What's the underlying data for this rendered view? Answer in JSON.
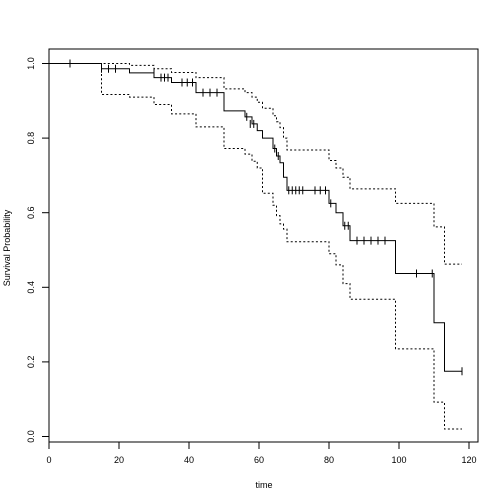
{
  "chart_data": {
    "type": "line",
    "title": "",
    "xlabel": "time",
    "ylabel": "Survival Probability",
    "xlim": [
      0,
      120
    ],
    "ylim": [
      0,
      1
    ],
    "grid": false,
    "x_ticks": [
      "0",
      "20",
      "40",
      "60",
      "80",
      "100",
      "120"
    ],
    "y_ticks": [
      "0.0",
      "0.2",
      "0.4",
      "0.6",
      "0.8",
      "1.0"
    ],
    "series": [
      {
        "line_style": "solid",
        "x": [
          0,
          15,
          23,
          30,
          35,
          42,
          50,
          56,
          58,
          59.5,
          61,
          64,
          65,
          66,
          67,
          68,
          80,
          82,
          84,
          86,
          99,
          110,
          113,
          118
        ],
        "y": [
          1.0,
          0.986,
          0.975,
          0.962,
          0.949,
          0.922,
          0.873,
          0.857,
          0.838,
          0.82,
          0.8,
          0.772,
          0.752,
          0.734,
          0.695,
          0.66,
          0.625,
          0.6,
          0.565,
          0.525,
          0.437,
          0.305,
          0.175,
          0.175
        ]
      },
      {
        "line_style": "dotted",
        "x": [
          0,
          15,
          23,
          30,
          35,
          42,
          50,
          56,
          58,
          59.5,
          61,
          64,
          65,
          66,
          67,
          68,
          80,
          82,
          84,
          86,
          99,
          110,
          113,
          118
        ],
        "y": [
          1.0,
          1.0,
          0.995,
          0.986,
          0.976,
          0.962,
          0.932,
          0.922,
          0.91,
          0.896,
          0.88,
          0.86,
          0.844,
          0.828,
          0.8,
          0.768,
          0.74,
          0.72,
          0.695,
          0.664,
          0.625,
          0.562,
          0.462,
          0.462
        ]
      },
      {
        "line_style": "dotted",
        "x": [
          0,
          15,
          23,
          30,
          35,
          42,
          50,
          56,
          58,
          59.5,
          61,
          64,
          65,
          66,
          67,
          68,
          80,
          82,
          84,
          86,
          99,
          110,
          113,
          118
        ],
        "y": [
          1.0,
          0.917,
          0.91,
          0.89,
          0.865,
          0.83,
          0.772,
          0.757,
          0.738,
          0.72,
          0.652,
          0.62,
          0.592,
          0.57,
          0.556,
          0.522,
          0.49,
          0.46,
          0.41,
          0.368,
          0.235,
          0.092,
          0.02,
          0.02
        ]
      }
    ],
    "censor_marks": [
      {
        "x": 6,
        "y": 1.0
      },
      {
        "x": 15,
        "y": 0.986
      },
      {
        "x": 17,
        "y": 0.986
      },
      {
        "x": 19,
        "y": 0.986
      },
      {
        "x": 30,
        "y": 0.975
      },
      {
        "x": 32,
        "y": 0.962
      },
      {
        "x": 33,
        "y": 0.962
      },
      {
        "x": 34,
        "y": 0.962
      },
      {
        "x": 38,
        "y": 0.949
      },
      {
        "x": 39.5,
        "y": 0.949
      },
      {
        "x": 41,
        "y": 0.949
      },
      {
        "x": 44,
        "y": 0.922
      },
      {
        "x": 46,
        "y": 0.922
      },
      {
        "x": 48,
        "y": 0.922
      },
      {
        "x": 56.5,
        "y": 0.857
      },
      {
        "x": 57.5,
        "y": 0.838
      },
      {
        "x": 58.5,
        "y": 0.838
      },
      {
        "x": 64.5,
        "y": 0.772
      },
      {
        "x": 65.5,
        "y": 0.752
      },
      {
        "x": 68.5,
        "y": 0.66
      },
      {
        "x": 69.5,
        "y": 0.66
      },
      {
        "x": 70.5,
        "y": 0.66
      },
      {
        "x": 71.5,
        "y": 0.66
      },
      {
        "x": 72.5,
        "y": 0.66
      },
      {
        "x": 76,
        "y": 0.66
      },
      {
        "x": 77.5,
        "y": 0.66
      },
      {
        "x": 79,
        "y": 0.66
      },
      {
        "x": 80.5,
        "y": 0.625
      },
      {
        "x": 84.5,
        "y": 0.565
      },
      {
        "x": 85.5,
        "y": 0.565
      },
      {
        "x": 88,
        "y": 0.525
      },
      {
        "x": 90,
        "y": 0.525
      },
      {
        "x": 92,
        "y": 0.525
      },
      {
        "x": 94,
        "y": 0.525
      },
      {
        "x": 96,
        "y": 0.525
      },
      {
        "x": 105,
        "y": 0.437
      },
      {
        "x": 109.5,
        "y": 0.437
      },
      {
        "x": 118,
        "y": 0.175
      }
    ]
  }
}
